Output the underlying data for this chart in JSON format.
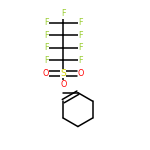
{
  "background_color": "#ffffff",
  "bond_color": "#000000",
  "atom_colors": {
    "F": "#9acd32",
    "S": "#cccc00",
    "O": "#ff0000",
    "C": "#000000"
  },
  "figsize": [
    1.5,
    1.5
  ],
  "dpi": 100,
  "xlim": [
    0,
    1
  ],
  "ylim": [
    0,
    1
  ]
}
